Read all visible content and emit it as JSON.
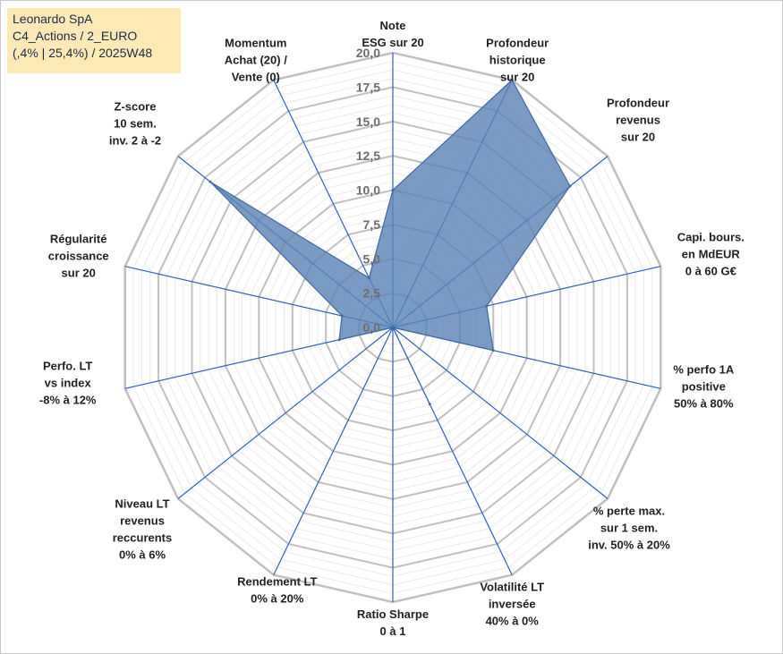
{
  "title_box": {
    "line1": "Leonardo SpA",
    "line2": "C4_Actions / 2_EURO",
    "line3": "(,4% | 25,4%) / 2025W48"
  },
  "colors": {
    "fill": "#5b84b6",
    "stroke": "#3e6aa6",
    "spoke": "#2e62b8",
    "grid": "#c0c0c0",
    "title_bg": "#fde9b6"
  },
  "chart_data": {
    "type": "radar",
    "rmax": 20,
    "ticks": [
      "0,0",
      "2,5",
      "5,0",
      "7,5",
      "10,0",
      "12,5",
      "15,0",
      "17,5",
      "20,0"
    ],
    "axes": [
      {
        "label": [
          "Note",
          "ESG sur 20"
        ],
        "value": 10.0
      },
      {
        "label": [
          "Profondeur",
          "historique",
          "sur 20"
        ],
        "value": 20.0
      },
      {
        "label": [
          "Profondeur",
          "revenus",
          "sur 20"
        ],
        "value": 16.5
      },
      {
        "label": [
          "Capi. bours.",
          "en MdEUR",
          "0 à 60 G€"
        ],
        "value": 7.0
      },
      {
        "label": [
          "% perfo 1A",
          "positive",
          "50% à 80%"
        ],
        "value": 7.5
      },
      {
        "label": [
          "% perte max.",
          "sur 1 sem.",
          "inv. 50% à 20%"
        ],
        "value": 0.0
      },
      {
        "label": [
          "Volatilité LT",
          "inversée",
          "40% à 0%"
        ],
        "value": 6.2
      },
      {
        "label": [
          "Ratio Sharpe",
          "0 à 1"
        ],
        "value": 0.0
      },
      {
        "label": [
          "Rendement LT",
          "0% à 20%"
        ],
        "value": 0.0
      },
      {
        "label": [
          "Niveau LT",
          "revenus",
          "reccurents",
          "0% à 6%"
        ],
        "value": 0.0
      },
      {
        "label": [
          "Perfo. LT",
          "vs index",
          "-8% à 12%"
        ],
        "value": 4.0
      },
      {
        "label": [
          "Régularité",
          "croissance",
          "sur 20"
        ],
        "value": 3.8
      },
      {
        "label": [
          "Z-score",
          "10 sem.",
          "inv. 2 à -2"
        ],
        "value": 17.0
      },
      {
        "label": [
          "Momentum",
          "Achat (20) /",
          "Vente (0)"
        ],
        "value": 4.0
      }
    ]
  }
}
